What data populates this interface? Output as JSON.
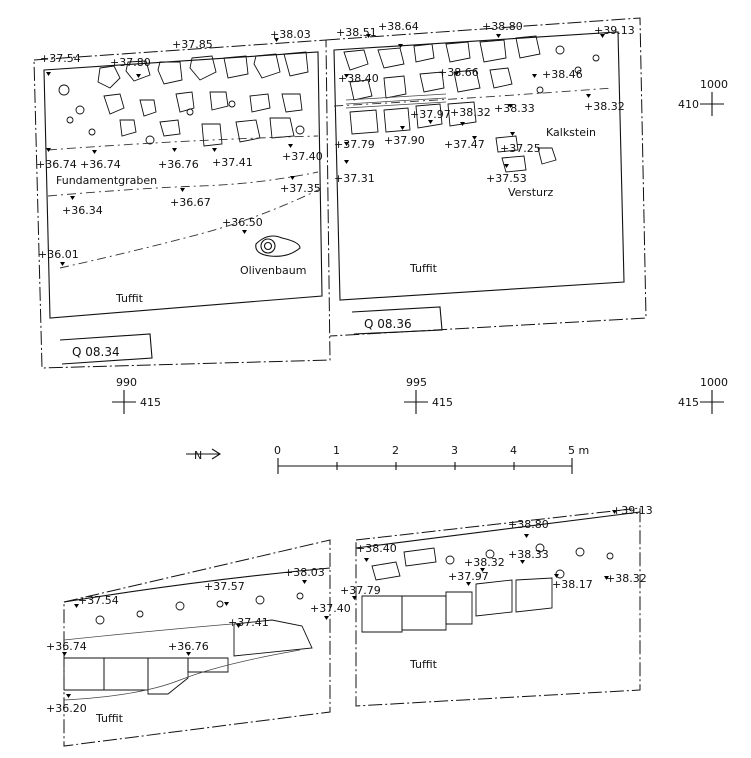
{
  "plan": {
    "trenches": [
      {
        "name": "Q 08.34",
        "labels": {
          "dig": "Fundamentgraben",
          "tree": "Olivenbaum",
          "soil": "Tuffit"
        }
      },
      {
        "name": "Q 08.36",
        "labels": {
          "stone": "Kalkstein",
          "debris": "Versturz",
          "soil": "Tuffit"
        }
      }
    ],
    "levels": [
      "+37.54",
      "+37.80",
      "+37.85",
      "+38.03",
      "+38.51",
      "+38.64",
      "+38.80",
      "+39.13",
      "+38.40",
      "+38.66",
      "+38.46",
      "+38.32",
      "+38.33",
      "+38.32",
      "+37.97",
      "+37.90",
      "+37.79",
      "+37.47",
      "+37.25",
      "+37.31",
      "+37.53",
      "+36.74",
      "+36.74",
      "+36.76",
      "+37.41",
      "+37.40",
      "+37.35",
      "+36.34",
      "+36.67",
      "+36.50",
      "+36.01"
    ],
    "grid": {
      "x1": "990",
      "x2": "995",
      "x3": "1000",
      "y": "415",
      "y_top": "410",
      "x_top": "1000"
    }
  },
  "north_symbol": "N",
  "scale": {
    "ticks": [
      "0",
      "1",
      "2",
      "3",
      "4",
      "5 m"
    ]
  },
  "section": {
    "levels": [
      "+38.03",
      "+37.57",
      "+37.54",
      "+37.41",
      "+37.40",
      "+36.74",
      "+36.76",
      "+36.20",
      "+38.40",
      "+38.80",
      "+39.13",
      "+38.32",
      "+38.33",
      "+37.79",
      "+37.97",
      "+38.17",
      "+38.32"
    ],
    "labels": {
      "left_soil": "Tuffit",
      "right_soil": "Tuffit"
    }
  }
}
